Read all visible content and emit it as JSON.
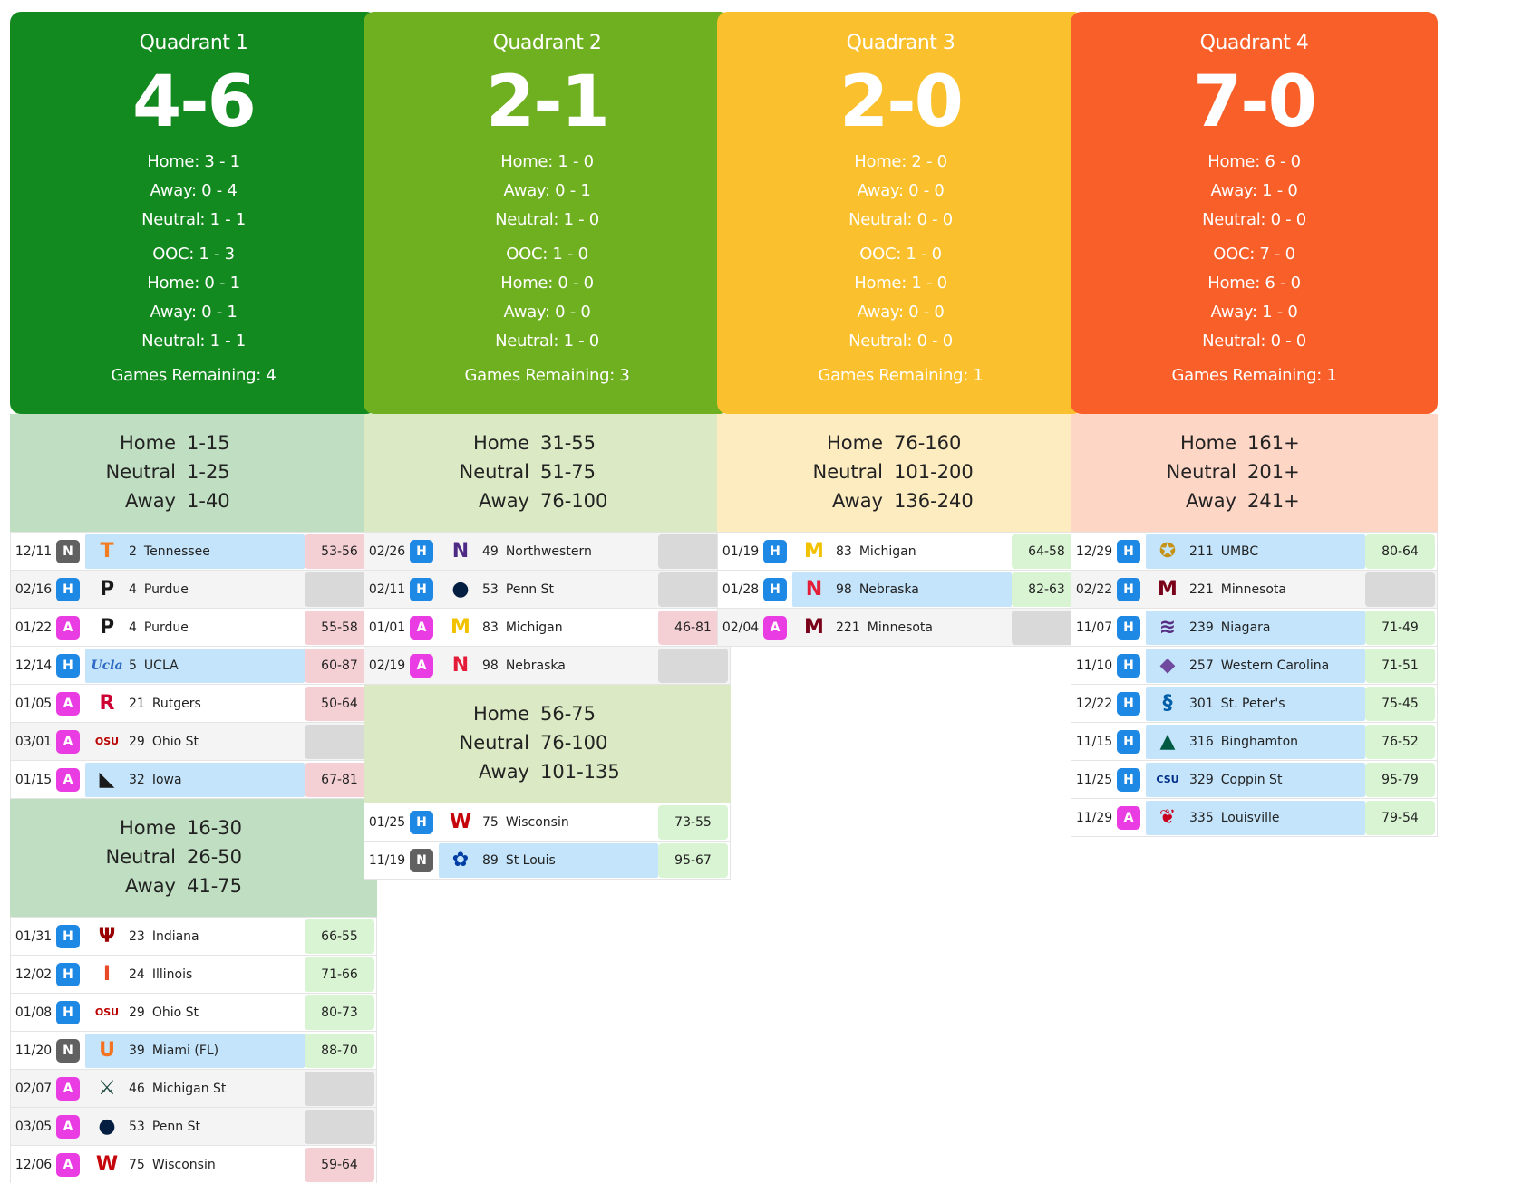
{
  "quadrants": [
    {
      "title": "Quadrant 1",
      "record": "4-6",
      "color": "#138a1f",
      "range_bg": "#c0dfc2",
      "stats": [
        "Home: 3 - 1",
        "Away: 0 - 4",
        "Neutral: 1 - 1"
      ],
      "ooc": [
        "OOC: 1 - 3",
        "Home: 0 - 1",
        "Away: 0 - 1",
        "Neutral: 1 - 1"
      ],
      "remaining": "Games Remaining: 4",
      "tiers": [
        {
          "ranges": [
            [
              "Home",
              "1-15"
            ],
            [
              "Neutral",
              "1-25"
            ],
            [
              "Away",
              "1-40"
            ]
          ],
          "games": [
            {
              "date": "12/11",
              "loc": "N",
              "logo": "T",
              "logo_color": "#f37b20",
              "rank": "2",
              "team": "Tennessee",
              "score": "53-56",
              "result": "l",
              "hl": true,
              "shade": false
            },
            {
              "date": "02/16",
              "loc": "H",
              "logo": "P",
              "logo_color": "#1a1a1a",
              "rank": "4",
              "team": "Purdue",
              "score": "",
              "result": "u",
              "hl": false,
              "shade": true
            },
            {
              "date": "01/22",
              "loc": "A",
              "logo": "P",
              "logo_color": "#1a1a1a",
              "rank": "4",
              "team": "Purdue",
              "score": "55-58",
              "result": "l",
              "hl": false,
              "shade": false
            },
            {
              "date": "12/14",
              "loc": "H",
              "logo": "Ucla",
              "logo_color": "#2d68c4",
              "rank": "5",
              "team": "UCLA",
              "score": "60-87",
              "result": "l",
              "hl": true,
              "shade": false
            },
            {
              "date": "01/05",
              "loc": "A",
              "logo": "R",
              "logo_color": "#cc0033",
              "rank": "21",
              "team": "Rutgers",
              "score": "50-64",
              "result": "l",
              "hl": false,
              "shade": false
            },
            {
              "date": "03/01",
              "loc": "A",
              "logo": "OSU",
              "logo_color": "#bb0000",
              "rank": "29",
              "team": "Ohio St",
              "score": "",
              "result": "u",
              "hl": false,
              "shade": true
            },
            {
              "date": "01/15",
              "loc": "A",
              "logo": "◣",
              "logo_color": "#1a1a1a",
              "rank": "32",
              "team": "Iowa",
              "score": "67-81",
              "result": "l",
              "hl": true,
              "shade": false
            }
          ]
        },
        {
          "ranges": [
            [
              "Home",
              "16-30"
            ],
            [
              "Neutral",
              "26-50"
            ],
            [
              "Away",
              "41-75"
            ]
          ],
          "games": [
            {
              "date": "01/31",
              "loc": "H",
              "logo": "Ψ",
              "logo_color": "#990000",
              "rank": "23",
              "team": "Indiana",
              "score": "66-55",
              "result": "w",
              "hl": false,
              "shade": false
            },
            {
              "date": "12/02",
              "loc": "H",
              "logo": "I",
              "logo_color": "#e84a27",
              "rank": "24",
              "team": "Illinois",
              "score": "71-66",
              "result": "w",
              "hl": false,
              "shade": false
            },
            {
              "date": "01/08",
              "loc": "H",
              "logo": "OSU",
              "logo_color": "#bb0000",
              "rank": "29",
              "team": "Ohio St",
              "score": "80-73",
              "result": "w",
              "hl": false,
              "shade": false
            },
            {
              "date": "11/20",
              "loc": "N",
              "logo": "U",
              "logo_color": "#f47321",
              "rank": "39",
              "team": "Miami (FL)",
              "score": "88-70",
              "result": "w",
              "hl": true,
              "shade": false
            },
            {
              "date": "02/07",
              "loc": "A",
              "logo": "⚔",
              "logo_color": "#18453b",
              "rank": "46",
              "team": "Michigan St",
              "score": "",
              "result": "u",
              "hl": false,
              "shade": true
            },
            {
              "date": "03/05",
              "loc": "A",
              "logo": "●",
              "logo_color": "#041e42",
              "rank": "53",
              "team": "Penn St",
              "score": "",
              "result": "u",
              "hl": false,
              "shade": true
            },
            {
              "date": "12/06",
              "loc": "A",
              "logo": "W",
              "logo_color": "#c5050c",
              "rank": "75",
              "team": "Wisconsin",
              "score": "59-64",
              "result": "l",
              "hl": false,
              "shade": false
            }
          ]
        }
      ]
    },
    {
      "title": "Quadrant 2",
      "record": "2-1",
      "color": "#6fb020",
      "range_bg": "#dbeac4",
      "stats": [
        "Home: 1 - 0",
        "Away: 0 - 1",
        "Neutral: 1 - 0"
      ],
      "ooc": [
        "OOC: 1 - 0",
        "Home: 0 - 0",
        "Away: 0 - 0",
        "Neutral: 1 - 0"
      ],
      "remaining": "Games Remaining: 3",
      "tiers": [
        {
          "ranges": [
            [
              "Home",
              "31-55"
            ],
            [
              "Neutral",
              "51-75"
            ],
            [
              "Away",
              "76-100"
            ]
          ],
          "games": [
            {
              "date": "02/26",
              "loc": "H",
              "logo": "N",
              "logo_color": "#4e2a84",
              "rank": "49",
              "team": "Northwestern",
              "score": "",
              "result": "u",
              "hl": false,
              "shade": true
            },
            {
              "date": "02/11",
              "loc": "H",
              "logo": "●",
              "logo_color": "#041e42",
              "rank": "53",
              "team": "Penn St",
              "score": "",
              "result": "u",
              "hl": false,
              "shade": true
            },
            {
              "date": "01/01",
              "loc": "A",
              "logo": "M",
              "logo_color": "#f2c200",
              "rank": "83",
              "team": "Michigan",
              "score": "46-81",
              "result": "l",
              "hl": false,
              "shade": false
            },
            {
              "date": "02/19",
              "loc": "A",
              "logo": "N",
              "logo_color": "#e41c38",
              "rank": "98",
              "team": "Nebraska",
              "score": "",
              "result": "u",
              "hl": false,
              "shade": true
            }
          ]
        },
        {
          "ranges": [
            [
              "Home",
              "56-75"
            ],
            [
              "Neutral",
              "76-100"
            ],
            [
              "Away",
              "101-135"
            ]
          ],
          "games": [
            {
              "date": "01/25",
              "loc": "H",
              "logo": "W",
              "logo_color": "#c5050c",
              "rank": "75",
              "team": "Wisconsin",
              "score": "73-55",
              "result": "w",
              "hl": false,
              "shade": false
            },
            {
              "date": "11/19",
              "loc": "N",
              "logo": "✿",
              "logo_color": "#003da5",
              "rank": "89",
              "team": "St Louis",
              "score": "95-67",
              "result": "w",
              "hl": true,
              "shade": false
            }
          ]
        }
      ]
    },
    {
      "title": "Quadrant 3",
      "record": "2-0",
      "color": "#fbc02d",
      "range_bg": "#feecc1",
      "stats": [
        "Home: 2 - 0",
        "Away: 0 - 0",
        "Neutral: 0 - 0"
      ],
      "ooc": [
        "OOC: 1 - 0",
        "Home: 1 - 0",
        "Away: 0 - 0",
        "Neutral: 0 - 0"
      ],
      "remaining": "Games Remaining: 1",
      "tiers": [
        {
          "ranges": [
            [
              "Home",
              "76-160"
            ],
            [
              "Neutral",
              "101-200"
            ],
            [
              "Away",
              "136-240"
            ]
          ],
          "games": [
            {
              "date": "01/19",
              "loc": "H",
              "logo": "M",
              "logo_color": "#f2c200",
              "rank": "83",
              "team": "Michigan",
              "score": "64-58",
              "result": "w",
              "hl": false,
              "shade": false
            },
            {
              "date": "01/28",
              "loc": "H",
              "logo": "N",
              "logo_color": "#e41c38",
              "rank": "98",
              "team": "Nebraska",
              "score": "82-63",
              "result": "w",
              "hl": true,
              "shade": false
            },
            {
              "date": "02/04",
              "loc": "A",
              "logo": "M",
              "logo_color": "#7a0019",
              "rank": "221",
              "team": "Minnesota",
              "score": "",
              "result": "u",
              "hl": false,
              "shade": true
            }
          ]
        }
      ]
    },
    {
      "title": "Quadrant 4",
      "record": "7-0",
      "color": "#f95f29",
      "range_bg": "#fdd6c6",
      "stats": [
        "Home: 6 - 0",
        "Away: 1 - 0",
        "Neutral: 0 - 0"
      ],
      "ooc": [
        "OOC: 7 - 0",
        "Home: 6 - 0",
        "Away: 1 - 0",
        "Neutral: 0 - 0"
      ],
      "remaining": "Games Remaining: 1",
      "tiers": [
        {
          "ranges": [
            [
              "Home",
              "161+"
            ],
            [
              "Neutral",
              "201+"
            ],
            [
              "Away",
              "241+"
            ]
          ],
          "games": [
            {
              "date": "12/29",
              "loc": "H",
              "logo": "✪",
              "logo_color": "#c69214",
              "rank": "211",
              "team": "UMBC",
              "score": "80-64",
              "result": "w",
              "hl": true,
              "shade": false
            },
            {
              "date": "02/22",
              "loc": "H",
              "logo": "M",
              "logo_color": "#7a0019",
              "rank": "221",
              "team": "Minnesota",
              "score": "",
              "result": "u",
              "hl": false,
              "shade": true
            },
            {
              "date": "11/07",
              "loc": "H",
              "logo": "≋",
              "logo_color": "#582c83",
              "rank": "239",
              "team": "Niagara",
              "score": "71-49",
              "result": "w",
              "hl": true,
              "shade": false
            },
            {
              "date": "11/10",
              "loc": "H",
              "logo": "◆",
              "logo_color": "#6f4a9e",
              "rank": "257",
              "team": "Western Carolina",
              "score": "71-51",
              "result": "w",
              "hl": true,
              "shade": false
            },
            {
              "date": "12/22",
              "loc": "H",
              "logo": "§",
              "logo_color": "#005ea8",
              "rank": "301",
              "team": "St. Peter's",
              "score": "75-45",
              "result": "w",
              "hl": true,
              "shade": false
            },
            {
              "date": "11/15",
              "loc": "H",
              "logo": "▲",
              "logo_color": "#005a43",
              "rank": "316",
              "team": "Binghamton",
              "score": "76-52",
              "result": "w",
              "hl": true,
              "shade": false
            },
            {
              "date": "11/25",
              "loc": "H",
              "logo": "CSU",
              "logo_color": "#002f87",
              "rank": "329",
              "team": "Coppin St",
              "score": "95-79",
              "result": "w",
              "hl": true,
              "shade": false
            },
            {
              "date": "11/29",
              "loc": "A",
              "logo": "❦",
              "logo_color": "#c9001f",
              "rank": "335",
              "team": "Louisville",
              "score": "79-54",
              "result": "w",
              "hl": true,
              "shade": false
            }
          ]
        }
      ]
    }
  ],
  "loc_colors": {
    "H": "#1e88e5",
    "A": "#e93ce2",
    "N": "#616161"
  }
}
